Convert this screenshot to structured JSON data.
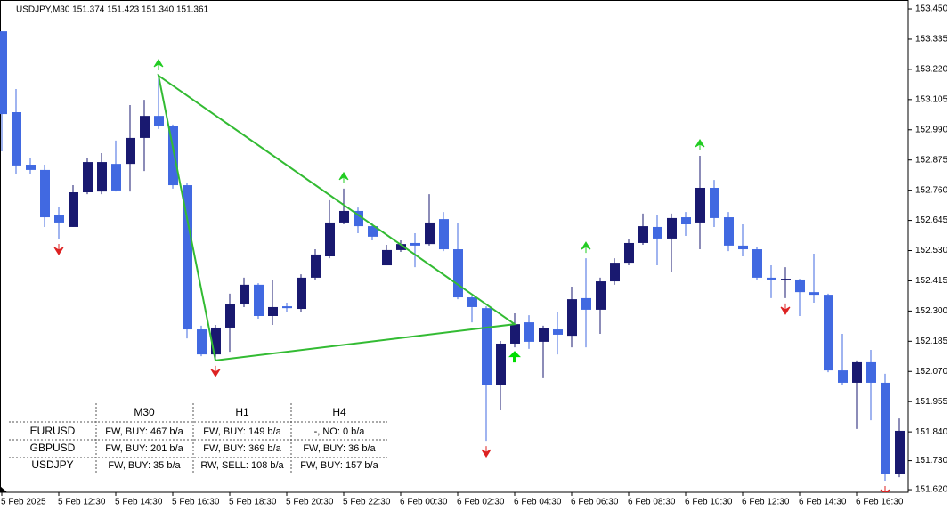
{
  "chart_data": {
    "type": "candlestick",
    "info": "USDJPY,M30  151.374 151.423 151.340 151.361",
    "categories": [
      "5 Feb 2025",
      null,
      null,
      null,
      "5 Feb 12:30",
      null,
      null,
      null,
      "5 Feb 14:30",
      null,
      null,
      null,
      "5 Feb 16:30",
      null,
      null,
      null,
      "5 Feb 18:30",
      null,
      null,
      null,
      "5 Feb 20:30",
      null,
      null,
      null,
      "5 Feb 22:30",
      null,
      null,
      null,
      "6 Feb 00:30",
      null,
      null,
      null,
      "6 Feb 02:30",
      null,
      null,
      null,
      "6 Feb 04:30",
      null,
      null,
      null,
      "6 Feb 06:30",
      null,
      null,
      null,
      "6 Feb 08:30",
      null,
      null,
      null,
      "6 Feb 10:30",
      null,
      null,
      null,
      "6 Feb 12:30",
      null,
      null,
      null,
      "6 Feb 14:30",
      null,
      null,
      null,
      "6 Feb 16:30",
      null,
      null,
      null
    ],
    "open": [
      153.365,
      153.057,
      152.857,
      152.837,
      152.664,
      152.62,
      152.752,
      152.755,
      152.86,
      152.86,
      152.959,
      153.043,
      153.003,
      152.779,
      152.23,
      152.135,
      152.237,
      152.325,
      152.4,
      152.281,
      152.318,
      152.308,
      152.427,
      152.508,
      152.637,
      152.681,
      152.623,
      152.474,
      152.532,
      152.559,
      152.555,
      152.65,
      152.535,
      152.352,
      152.311,
      152.02,
      152.176,
      152.257,
      152.183,
      152.23,
      152.206,
      152.349,
      152.305,
      152.413,
      152.484,
      152.559,
      152.62,
      152.576,
      152.657,
      152.637,
      152.769,
      152.657,
      152.549,
      152.535,
      152.427,
      152.42,
      152.42,
      152.372,
      152.362,
      152.074,
      152.027,
      152.105,
      152.027,
      151.681
    ],
    "high": [
      153.365,
      153.145,
      152.881,
      152.857,
      152.698,
      152.779,
      152.881,
      152.901,
      152.949,
      153.084,
      153.104,
      153.196,
      153.01,
      152.789,
      152.244,
      152.247,
      152.366,
      152.427,
      152.406,
      152.417,
      152.332,
      152.44,
      152.535,
      152.722,
      152.766,
      152.694,
      152.637,
      152.552,
      152.569,
      152.596,
      152.745,
      152.677,
      152.637,
      152.359,
      152.318,
      152.186,
      152.291,
      152.284,
      152.244,
      152.298,
      152.393,
      152.501,
      152.427,
      152.501,
      152.576,
      152.671,
      152.664,
      152.671,
      152.677,
      152.891,
      152.799,
      152.677,
      152.63,
      152.542,
      152.474,
      152.467,
      152.423,
      152.518,
      152.366,
      152.213,
      152.112,
      152.152,
      152.061,
      151.891
    ],
    "low": [
      152.908,
      152.823,
      152.823,
      152.62,
      152.576,
      152.62,
      152.745,
      152.745,
      152.755,
      152.755,
      152.833,
      152.993,
      152.766,
      152.196,
      152.128,
      152.112,
      152.145,
      152.315,
      152.271,
      152.247,
      152.298,
      152.298,
      152.417,
      152.501,
      152.63,
      152.596,
      152.569,
      152.474,
      152.525,
      152.467,
      152.549,
      152.528,
      152.345,
      152.257,
      151.806,
      151.925,
      152.162,
      152.156,
      152.044,
      152.135,
      152.162,
      152.162,
      152.213,
      152.4,
      152.474,
      152.552,
      152.474,
      152.447,
      152.586,
      152.535,
      152.62,
      152.528,
      152.508,
      152.417,
      152.349,
      152.349,
      152.281,
      152.332,
      152.067,
      152.02,
      151.851,
      151.884,
      151.654,
      151.667
    ],
    "close": [
      153.05,
      152.854,
      152.837,
      152.657,
      152.637,
      152.752,
      152.867,
      152.867,
      152.759,
      152.959,
      153.043,
      153.003,
      152.779,
      152.23,
      152.135,
      152.237,
      152.325,
      152.4,
      152.281,
      152.315,
      152.311,
      152.427,
      152.515,
      152.637,
      152.681,
      152.623,
      152.583,
      152.532,
      152.555,
      152.549,
      152.637,
      152.535,
      152.352,
      152.315,
      152.02,
      152.176,
      152.25,
      152.183,
      152.234,
      152.21,
      152.345,
      152.305,
      152.413,
      152.484,
      152.559,
      152.623,
      152.576,
      152.654,
      152.63,
      152.769,
      152.654,
      152.549,
      152.535,
      152.427,
      152.42,
      152.423,
      152.372,
      152.362,
      152.074,
      152.027,
      152.105,
      152.027,
      151.681,
      151.844
    ],
    "up_color": "#191970",
    "down_color": "#4169e1",
    "fractals_up": [
      11,
      24,
      41,
      49
    ],
    "fractals_down": [
      4,
      15,
      34,
      55,
      62
    ],
    "fractal_up_color": "#22cc22",
    "fractal_down_color": "#dd2222",
    "signal_buy": 36,
    "triangle": {
      "index": [
        11,
        15,
        36
      ],
      "price": [
        153.196,
        152.112,
        152.25
      ],
      "color": "#33bb33"
    },
    "ylim": [
      151.61,
      153.484
    ],
    "yticks": [
      {
        "value": 153.45,
        "label": "153.450"
      },
      {
        "value": 153.335,
        "label": "153.335"
      },
      {
        "value": 153.22,
        "label": "153.220"
      },
      {
        "value": 153.105,
        "label": "153.105"
      },
      {
        "value": 152.99,
        "label": "152.990"
      },
      {
        "value": 152.875,
        "label": "152.875"
      },
      {
        "value": 152.76,
        "label": "152.760"
      },
      {
        "value": 152.645,
        "label": "152.645"
      },
      {
        "value": 152.53,
        "label": "152.530"
      },
      {
        "value": 152.415,
        "label": "152.415"
      },
      {
        "value": 152.3,
        "label": "152.300"
      },
      {
        "value": 152.185,
        "label": "152.185"
      },
      {
        "value": 152.07,
        "label": "152.070"
      },
      {
        "value": 151.955,
        "label": "151.955"
      },
      {
        "value": 151.84,
        "label": "151.840"
      },
      {
        "value": 151.73,
        "label": "151.730"
      },
      {
        "value": 151.62,
        "label": "151.620"
      }
    ]
  },
  "table": {
    "columns": [
      "M30",
      "H1",
      "H4"
    ],
    "rows": [
      {
        "symbol": "EURUSD",
        "cells": [
          "FW, BUY: 467 b/a",
          "FW, BUY: 149 b/a",
          "-, NO: 0 b/a"
        ]
      },
      {
        "symbol": "GBPUSD",
        "cells": [
          "FW, BUY: 201 b/a",
          "FW, BUY: 369 b/a",
          "FW, BUY: 36 b/a"
        ]
      },
      {
        "symbol": "USDJPY",
        "cells": [
          "FW, BUY: 35 b/a",
          "RW, SELL: 108 b/a",
          "FW, BUY: 157 b/a"
        ]
      }
    ]
  }
}
